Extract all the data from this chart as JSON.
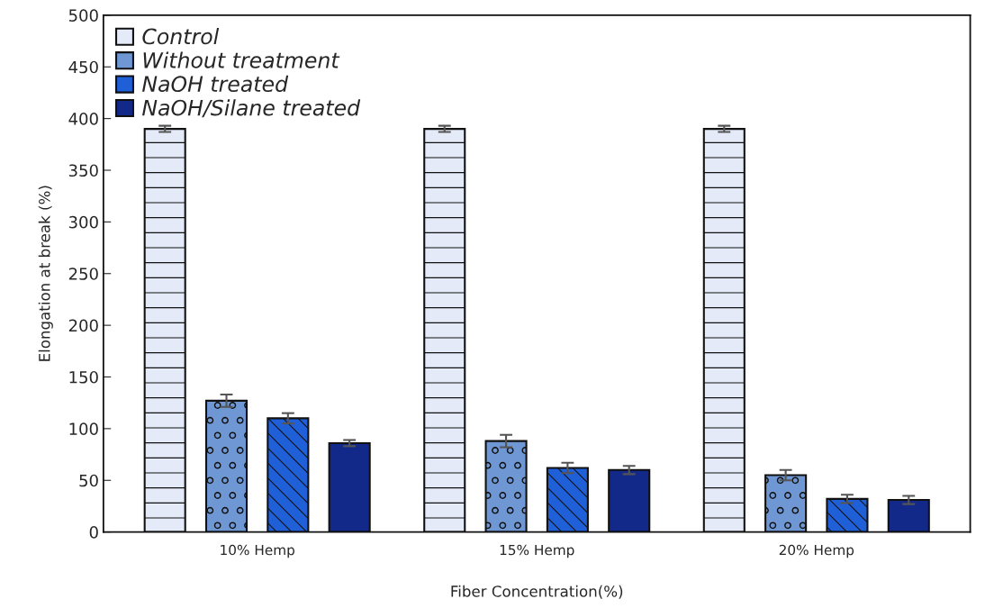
{
  "chart_data": {
    "type": "bar",
    "xlabel": "Fiber Concentration(%)",
    "ylabel": "Elongation at break (%)",
    "categories": [
      "10% Hemp",
      "15% Hemp",
      "20% Hemp"
    ],
    "series": [
      {
        "name": "Control",
        "color": "#e4eaf8",
        "values": [
          390,
          390,
          390
        ],
        "errors": [
          3,
          3,
          3
        ]
      },
      {
        "name": "Without treatment",
        "color": "#6f97d3",
        "values": [
          127,
          88,
          55
        ],
        "errors": [
          6,
          6,
          5
        ]
      },
      {
        "name": "NaOH treated",
        "color": "#1f5fd8",
        "values": [
          110,
          62,
          32
        ],
        "errors": [
          5,
          5,
          4
        ]
      },
      {
        "name": "NaOH/Silane treated",
        "color": "#13298a",
        "values": [
          86,
          60,
          31
        ],
        "errors": [
          3,
          4,
          4
        ]
      }
    ],
    "ylim": [
      0,
      500
    ],
    "yticks": [
      0,
      50,
      100,
      150,
      200,
      250,
      300,
      350,
      400,
      450,
      500
    ],
    "legend": "top left",
    "grid": false
  }
}
